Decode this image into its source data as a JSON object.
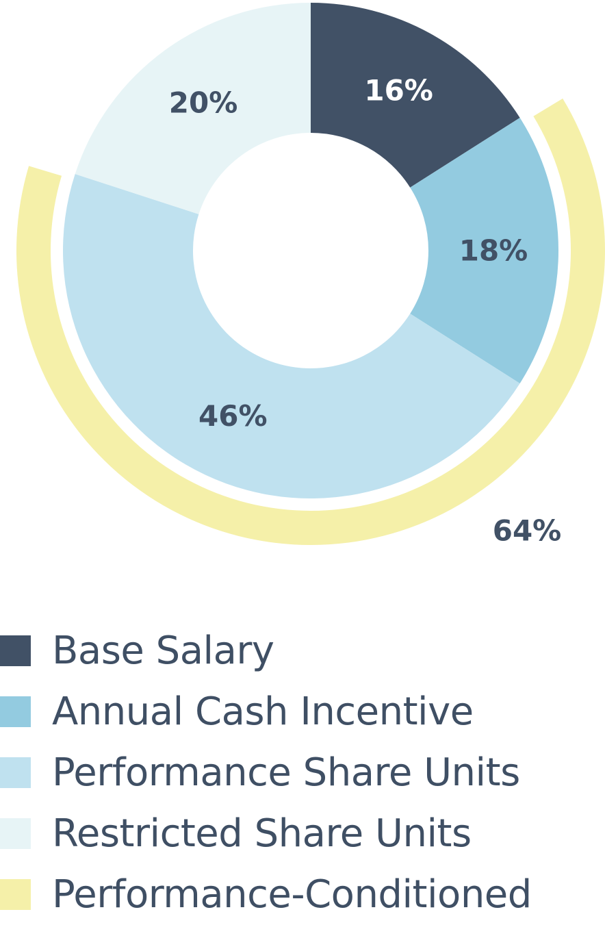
{
  "chart_data": {
    "type": "pie",
    "variant": "donut",
    "slices": [
      {
        "name": "Base Salary",
        "value": 16,
        "label": "16%",
        "color": "#415166",
        "label_color": "#ffffff"
      },
      {
        "name": "Annual Cash Incentive",
        "value": 18,
        "label": "18%",
        "color": "#93cbe0",
        "label_color": "#415166"
      },
      {
        "name": "Performance Share Units",
        "value": 46,
        "label": "46%",
        "color": "#bfe1ef",
        "label_color": "#415166"
      },
      {
        "name": "Restricted Share Units",
        "value": 20,
        "label": "20%",
        "color": "#e7f4f6",
        "label_color": "#415166"
      }
    ],
    "outer_arc": {
      "name": "Performance-Conditioned",
      "value": 64,
      "label": "64%",
      "color": "#f5f0a9",
      "label_color": "#415166"
    },
    "legend": {
      "placement": "bottom",
      "entries": [
        {
          "label": "Base Salary",
          "color": "#415166"
        },
        {
          "label": "Annual Cash Incentive",
          "color": "#93cbe0"
        },
        {
          "label": "Performance Share Units",
          "color": "#bfe1ef"
        },
        {
          "label": "Restricted Share Units",
          "color": "#e7f4f6"
        },
        {
          "label": "Performance-Conditioned",
          "color": "#f5f0a9"
        }
      ]
    }
  }
}
